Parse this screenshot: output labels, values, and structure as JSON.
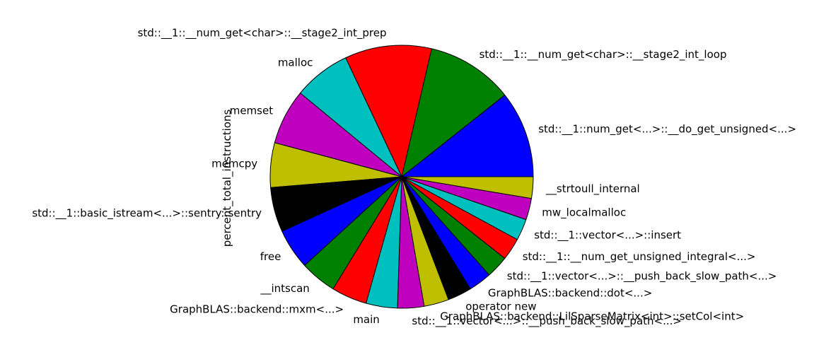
{
  "chart_data": {
    "type": "pie",
    "ylabel": "percent_total_instructions",
    "start_angle_deg": 0,
    "direction": "counterclockwise",
    "slices": [
      {
        "label": "std::__1::num_get<...>::__do_get_unsigned<...>",
        "value": 10.5,
        "color": "#0000ff"
      },
      {
        "label": "std::__1::__num_get<char>::__stage2_int_loop",
        "value": 10.5,
        "color": "#008000"
      },
      {
        "label": "std::__1::__num_get<char>::__stage2_int_prep",
        "value": 10.5,
        "color": "#ff0000"
      },
      {
        "label": "malloc",
        "value": 6.9,
        "color": "#00bfbf"
      },
      {
        "label": "memset",
        "value": 6.7,
        "color": "#bf00bf"
      },
      {
        "label": "memcpy",
        "value": 5.4,
        "color": "#bfbf00"
      },
      {
        "label": "std::__1::basic_istream<...>::sentry::sentry",
        "value": 5.4,
        "color": "#000000"
      },
      {
        "label": "free",
        "value": 4.9,
        "color": "#0000ff"
      },
      {
        "label": "__intscan",
        "value": 4.4,
        "color": "#008000"
      },
      {
        "label": "GraphBLAS::backend::mxm<...>",
        "value": 4.3,
        "color": "#ff0000"
      },
      {
        "label": "main",
        "value": 3.8,
        "color": "#00bfbf"
      },
      {
        "label": "std::__1::vector<...>::__push_back_slow_path<...>",
        "value": 3.2,
        "color": "#bf00bf"
      },
      {
        "label": "GraphBLAS::backend::LilSparseMatrix<int>::setCol<int>",
        "value": 3.0,
        "color": "#bfbf00"
      },
      {
        "label": "operator new",
        "value": 2.9,
        "color": "#000000"
      },
      {
        "label": "GraphBLAS::backend::dot<...>",
        "value": 2.8,
        "color": "#0000ff"
      },
      {
        "label": "std::__1::vector<...>::__push_back_slow_path<...>",
        "value": 2.7,
        "color": "#008000"
      },
      {
        "label": "std::__1::__num_get_unsigned_integral<...>",
        "value": 2.7,
        "color": "#ff0000"
      },
      {
        "label": "std::__1::vector<...>::insert",
        "value": 2.6,
        "color": "#00bfbf"
      },
      {
        "label": "mw_localmalloc",
        "value": 2.6,
        "color": "#bf00bf"
      },
      {
        "label": "__strtoull_internal",
        "value": 2.6,
        "color": "#bfbf00"
      }
    ]
  }
}
